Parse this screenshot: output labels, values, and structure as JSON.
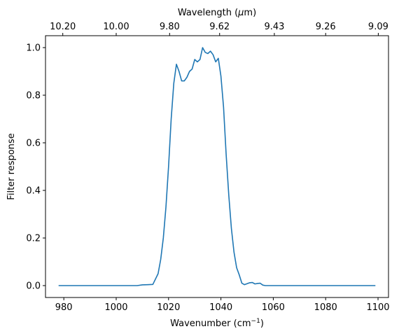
{
  "chart_data": {
    "type": "line",
    "xlabel_base": "Wavenumber (cm",
    "xlabel_sup": "−1",
    "xlabel_end": ")",
    "ylabel": "Filter response",
    "top_xlabel_base": "Wavelength (",
    "top_xlabel_mu": "μ",
    "top_xlabel_end": "m)",
    "xlim": [
      973,
      1104
    ],
    "ylim": [
      -0.05,
      1.05
    ],
    "xticks": [
      980,
      1000,
      1020,
      1040,
      1060,
      1080,
      1100
    ],
    "yticks": [
      "0.0",
      "0.2",
      "0.4",
      "0.6",
      "0.8",
      "1.0"
    ],
    "top_ticks": [
      {
        "wavenumber": 979.6,
        "label": "10.20"
      },
      {
        "wavenumber": 1000,
        "label": "10.00"
      },
      {
        "wavenumber": 1020.4,
        "label": "9.80"
      },
      {
        "wavenumber": 1039.5,
        "label": "9.62"
      },
      {
        "wavenumber": 1060.4,
        "label": "9.43"
      },
      {
        "wavenumber": 1080,
        "label": "9.26"
      },
      {
        "wavenumber": 1100.1,
        "label": "9.09"
      }
    ],
    "line_color": "#1f77b4",
    "series": [
      {
        "x": [
          978,
          985,
          990,
          995,
          1000,
          1005,
          1008,
          1010,
          1012,
          1014,
          1016,
          1017,
          1018,
          1019,
          1020,
          1021,
          1022,
          1023,
          1024,
          1025,
          1026,
          1027,
          1028,
          1029,
          1030,
          1031,
          1032,
          1033,
          1034,
          1035,
          1036,
          1037,
          1038,
          1039,
          1040,
          1041,
          1042,
          1043,
          1044,
          1045,
          1046,
          1047,
          1048,
          1049,
          1050,
          1051,
          1052,
          1053,
          1054,
          1055,
          1056,
          1057,
          1058,
          1059,
          1060,
          1061,
          1062,
          1063,
          1064,
          1065,
          1066,
          1068,
          1070,
          1075,
          1080,
          1085,
          1090,
          1095,
          1099
        ],
        "y": [
          0.0,
          0.0,
          0.0,
          0.0,
          0.0,
          0.0,
          0.0,
          0.003,
          0.004,
          0.005,
          0.05,
          0.11,
          0.2,
          0.33,
          0.5,
          0.7,
          0.85,
          0.93,
          0.9,
          0.86,
          0.86,
          0.875,
          0.9,
          0.91,
          0.95,
          0.94,
          0.95,
          1.0,
          0.98,
          0.975,
          0.985,
          0.97,
          0.94,
          0.955,
          0.88,
          0.75,
          0.55,
          0.38,
          0.24,
          0.14,
          0.075,
          0.045,
          0.01,
          0.004,
          0.008,
          0.012,
          0.013,
          0.007,
          0.009,
          0.01,
          0.002,
          0.0,
          0.0,
          0.0,
          0.0,
          0.0,
          0.0,
          0.0,
          0.0,
          0.0,
          0.0,
          0.0,
          0.0,
          0.0,
          0.0,
          0.0,
          0.0,
          0.0,
          0.0
        ]
      }
    ]
  }
}
